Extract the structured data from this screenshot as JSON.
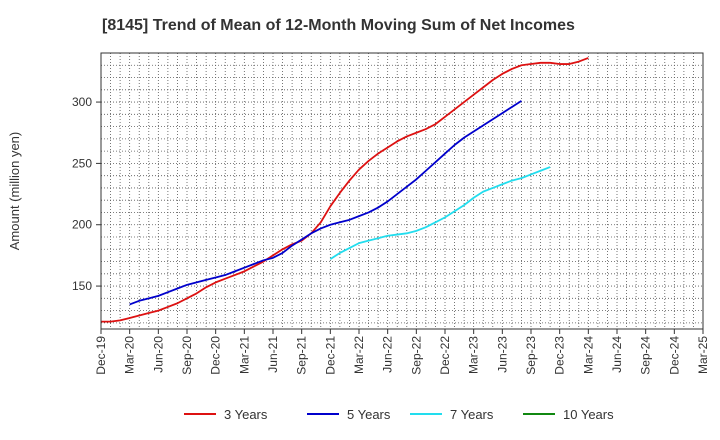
{
  "chart_data": {
    "type": "line",
    "title": "[8145]  Trend of Mean of 12-Month Moving Sum of Net Incomes",
    "ylabel": "Amount (million yen)",
    "xlabel": "",
    "ylim": [
      115,
      340
    ],
    "yticks": [
      150,
      200,
      250,
      300
    ],
    "grid": true,
    "legend_position": "bottom",
    "x_ticks": [
      "Dec-19",
      "Mar-20",
      "Jun-20",
      "Sep-20",
      "Dec-20",
      "Mar-21",
      "Jun-21",
      "Sep-21",
      "Dec-21",
      "Mar-22",
      "Jun-22",
      "Sep-22",
      "Dec-22",
      "Mar-23",
      "Jun-23",
      "Sep-23",
      "Dec-23",
      "Mar-24",
      "Jun-24",
      "Sep-24",
      "Dec-24",
      "Mar-25"
    ],
    "series": [
      {
        "name": "3 Years",
        "color": "#dd1111",
        "start_index": 0,
        "values": [
          121,
          121,
          122,
          124,
          126,
          128,
          130,
          133,
          136,
          140,
          144,
          149,
          153,
          156,
          159,
          162,
          166,
          170,
          175,
          180,
          184,
          187,
          193,
          202,
          215,
          226,
          236,
          245,
          252,
          258,
          263,
          268,
          272,
          275,
          278,
          282,
          288,
          294,
          300,
          306,
          312,
          318,
          323,
          327,
          330,
          331,
          332,
          332,
          331,
          331,
          333,
          336
        ]
      },
      {
        "name": "5 Years",
        "color": "#0000cc",
        "start_index": 3,
        "values": [
          135,
          138,
          140,
          142,
          145,
          148,
          151,
          153,
          155,
          157,
          159,
          162,
          165,
          168,
          171,
          173,
          177,
          183,
          188,
          193,
          197,
          200,
          202,
          204,
          207,
          210,
          214,
          219,
          225,
          231,
          237,
          244,
          251,
          258,
          265,
          271,
          276,
          281,
          286,
          291,
          296,
          301
        ]
      },
      {
        "name": "7 Years",
        "color": "#22ddee",
        "start_index": 24,
        "values": [
          172,
          177,
          181,
          185,
          187,
          189,
          191,
          192,
          193,
          195,
          198,
          202,
          206,
          211,
          216,
          222,
          227,
          230,
          233,
          236,
          238,
          241,
          244,
          247
        ]
      },
      {
        "name": "10 Years",
        "color": "#118811",
        "start_index": 0,
        "values": []
      }
    ]
  }
}
